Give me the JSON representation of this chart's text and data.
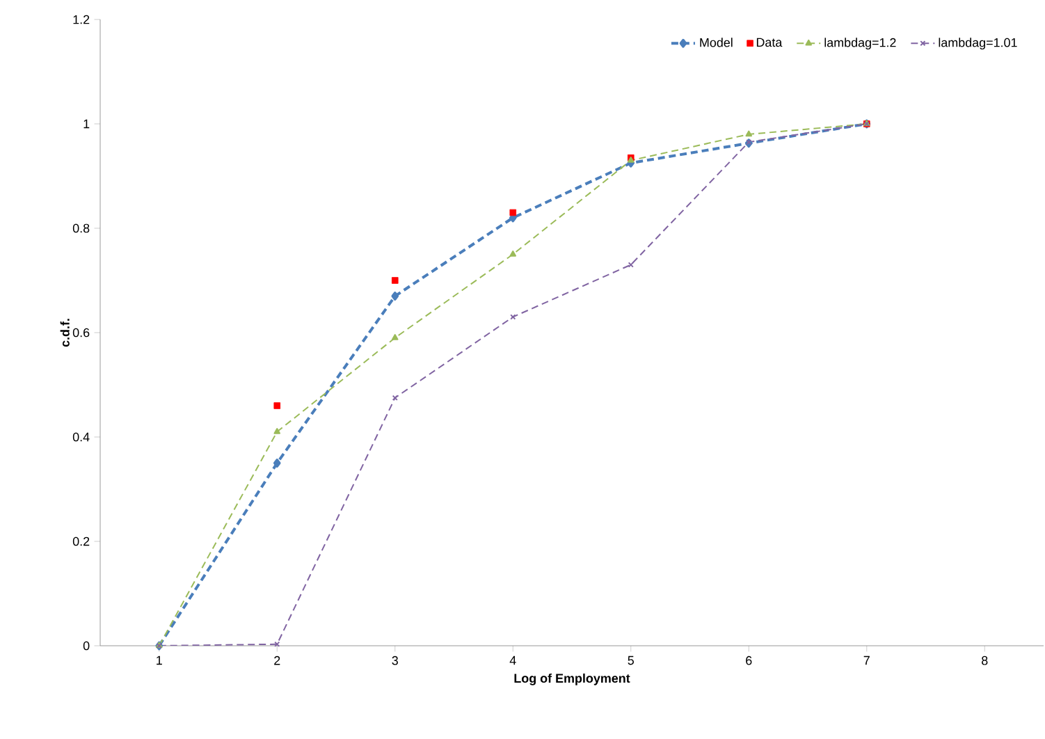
{
  "chart_data": {
    "type": "line",
    "xlabel": "Log of Employment",
    "ylabel": "c.d.f.",
    "x": [
      1,
      2,
      3,
      4,
      5,
      6,
      7
    ],
    "series": [
      {
        "name": "Model",
        "color": "#4a7ebb",
        "values": [
          0,
          0.35,
          0.67,
          0.82,
          0.925,
          0.963,
          1.0
        ],
        "marker": "diamond",
        "line_style": "dashed"
      },
      {
        "name": "Data",
        "type": "scatter",
        "color": "#ff0000",
        "values": [
          null,
          0.46,
          0.7,
          0.83,
          0.935,
          null,
          1.0
        ],
        "marker": "square"
      },
      {
        "name": "lambdag=1.2",
        "color": "#9bbb59",
        "values": [
          0,
          0.41,
          0.59,
          0.75,
          0.93,
          0.98,
          1.0
        ],
        "marker": "triangle",
        "line_style": "dashed"
      },
      {
        "name": "lambdag=1.01",
        "color": "#8064a2",
        "values": [
          0,
          0.003,
          0.475,
          0.63,
          0.73,
          0.965,
          1.0
        ],
        "marker": "cross",
        "line_style": "dashed"
      }
    ],
    "xlim": [
      0.5,
      8.5
    ],
    "ylim": [
      0,
      1.2
    ],
    "xticks": [
      1,
      2,
      3,
      4,
      5,
      6,
      7,
      8
    ],
    "yticks": [
      0,
      0.2,
      0.4,
      0.6,
      0.8,
      1,
      1.2
    ],
    "grid": false,
    "legend": "top right"
  }
}
